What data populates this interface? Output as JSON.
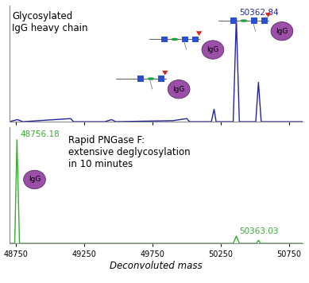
{
  "chart_data": [
    {
      "type": "line",
      "title": "Glycosylated\nIgG heavy chain",
      "x": [
        48700,
        48760,
        48800,
        49150,
        49170,
        49400,
        49450,
        49480,
        49900,
        50000,
        50020,
        50180,
        50200,
        50215,
        50340,
        50362.84,
        50385,
        50505,
        50525,
        50545,
        50850
      ],
      "values": [
        0.0,
        0.02,
        0.0,
        0.03,
        0.0,
        0.0,
        0.02,
        0.0,
        0.01,
        0.03,
        0.0,
        0.0,
        0.12,
        0.0,
        0.0,
        1.0,
        0.0,
        0.0,
        0.38,
        0.0,
        0.0
      ],
      "color": "#23239c",
      "xlim": [
        48700,
        50850
      ],
      "xticks": [
        48750,
        49250,
        49750,
        50250,
        50750
      ],
      "ylim": [
        0,
        1.12
      ],
      "tick_labels": false,
      "peak_labels": [
        {
          "value": 50362.84,
          "label": "50362.84"
        }
      ],
      "annotations": [
        {
          "text": "IgG",
          "x": 50362.84
        },
        {
          "text": "IgG",
          "x": 50525
        },
        {
          "text": "IgG",
          "x": 50200
        }
      ]
    },
    {
      "type": "line",
      "title": "Rapid PNGase F:\nextensive deglycosylation\nin 10 minutes",
      "x": [
        48700,
        48740,
        48756.18,
        48775,
        50340,
        50363.03,
        50385,
        50510,
        50525,
        50540,
        50850
      ],
      "values": [
        0.0,
        0.0,
        1.0,
        0.0,
        0.0,
        0.07,
        0.0,
        0.0,
        0.03,
        0.0,
        0.0
      ],
      "color": "#3aaa35",
      "xlim": [
        48700,
        50850
      ],
      "xticks": [
        48750,
        49250,
        49750,
        50250,
        50750
      ],
      "ylim": [
        0,
        1.12
      ],
      "tick_labels": "x",
      "x_label": "Deconvoluted mass",
      "peak_labels": [
        {
          "value": 48756.18,
          "label": "48756.18"
        },
        {
          "value": 50363.03,
          "label": "50363.03"
        }
      ],
      "annotations": [
        {
          "text": "IgG",
          "x": 48756.18
        }
      ]
    }
  ]
}
